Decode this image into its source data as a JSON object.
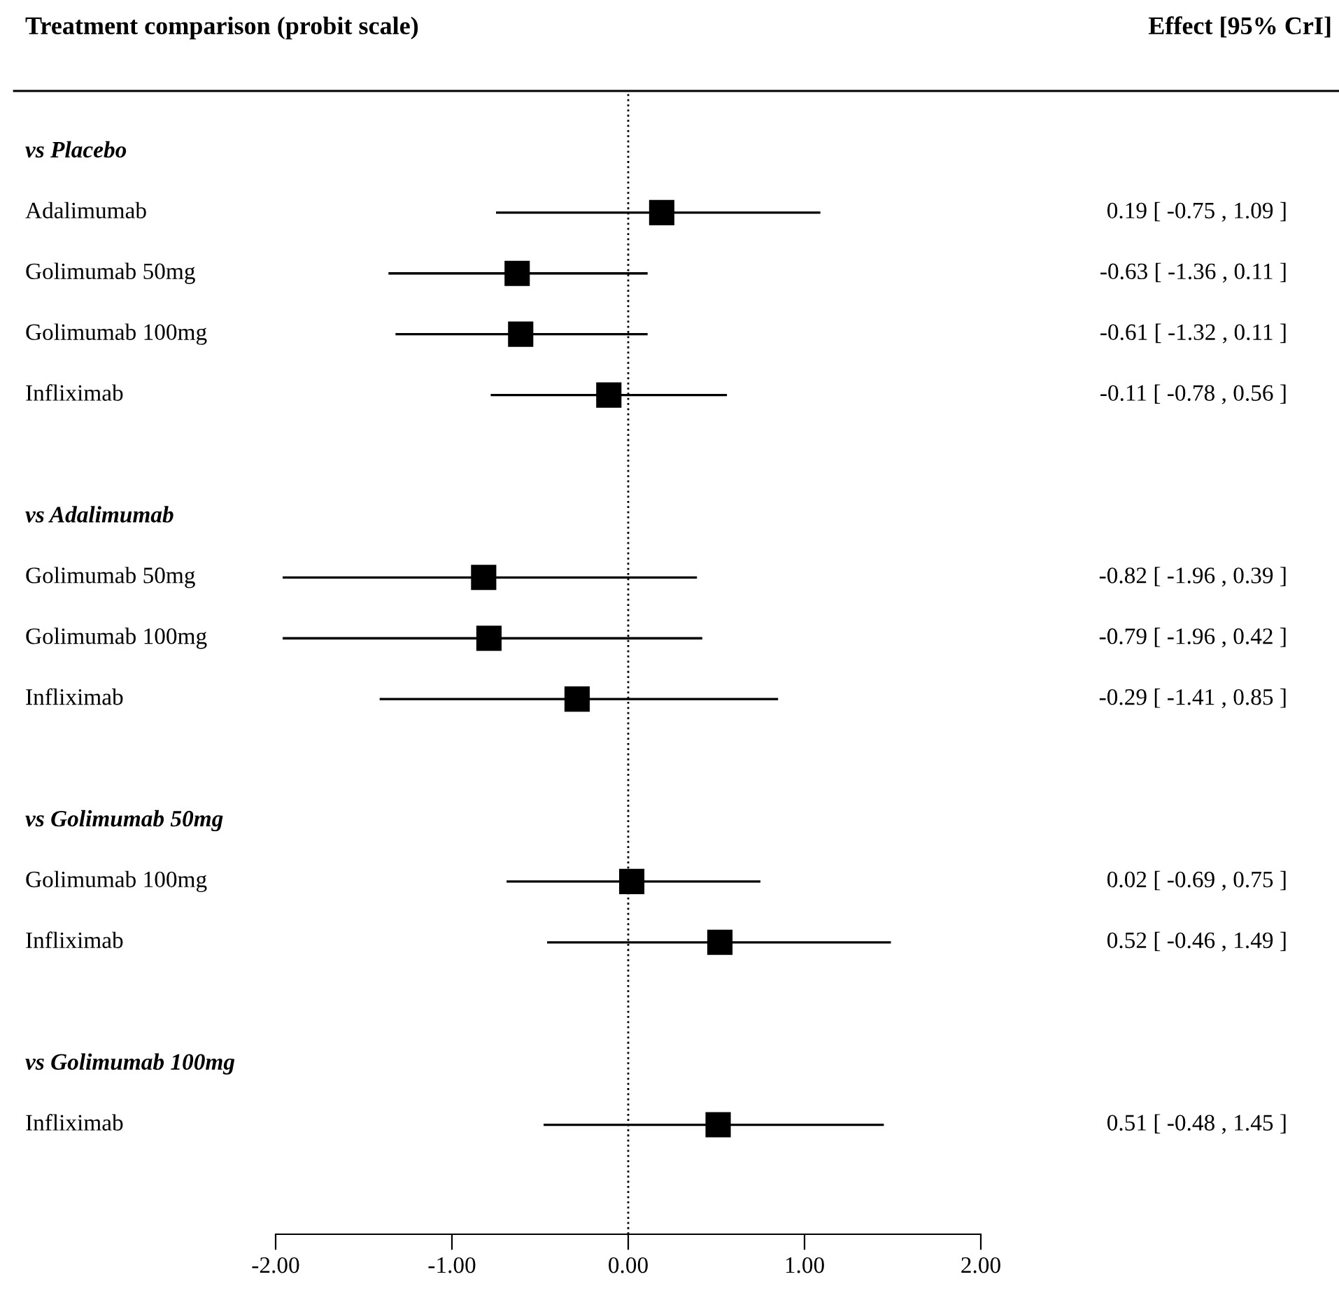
{
  "chart_data": {
    "type": "scatter",
    "orientation": "horizontal",
    "title": "Treatment comparison (probit scale)",
    "annotations": [
      "Effect [95% CrI]"
    ],
    "categories": [
      "vs Placebo",
      "Adalimumab",
      "Golimumab 50mg",
      "Golimumab 100mg",
      "Infliximab",
      null,
      "vs Adalimumab",
      "Golimumab 50mg",
      "Golimumab 100mg",
      "Infliximab",
      null,
      "vs Golimumab 50mg",
      "Golimumab 100mg",
      "Infliximab",
      null,
      "vs Golimumab 100mg",
      "Infliximab"
    ],
    "values": [
      null,
      0.19,
      -0.63,
      -0.61,
      -0.11,
      null,
      null,
      -0.82,
      -0.79,
      -0.29,
      null,
      null,
      0.02,
      0.52,
      null,
      null,
      0.51
    ],
    "errors": [
      null,
      [
        -0.75,
        1.09
      ],
      [
        -1.36,
        0.11
      ],
      [
        -1.32,
        0.11
      ],
      [
        -0.78,
        0.56
      ],
      null,
      null,
      [
        -1.96,
        0.39
      ],
      [
        -1.96,
        0.42
      ],
      [
        -1.41,
        0.85
      ],
      null,
      null,
      [
        -0.69,
        0.75
      ],
      [
        -0.46,
        1.49
      ],
      null,
      null,
      [
        -0.48,
        1.45
      ]
    ],
    "value_labels": [
      null,
      "0.19 [ -0.75 , 1.09 ]",
      "-0.63 [ -1.36 , 0.11 ]",
      "-0.61 [ -1.32 , 0.11 ]",
      "-0.11 [ -0.78 , 0.56 ]",
      null,
      null,
      "-0.82 [ -1.96 , 0.39 ]",
      "-0.79 [ -1.96 , 0.42 ]",
      "-0.29 [ -1.41 , 0.85 ]",
      null,
      null,
      "0.02 [ -0.69 , 0.75 ]",
      "0.52 [ -0.46 , 1.49 ]",
      null,
      null,
      "0.51 [ -0.48 , 1.45 ]"
    ],
    "color": "#000000",
    "marker": "square",
    "xlim": [
      -2,
      2
    ],
    "xticks": [
      {
        "value": -2,
        "label": "-2.00"
      },
      {
        "value": -1,
        "label": "-1.00"
      },
      {
        "value": 0,
        "label": "0.00"
      },
      {
        "value": 1,
        "label": "1.00"
      },
      {
        "value": 2,
        "label": "2.00"
      }
    ],
    "ref_lines": [
      {
        "axis": "x",
        "value": 0,
        "line_style": "dotted",
        "color": "#000000"
      }
    ],
    "grid": false,
    "legend": false
  }
}
